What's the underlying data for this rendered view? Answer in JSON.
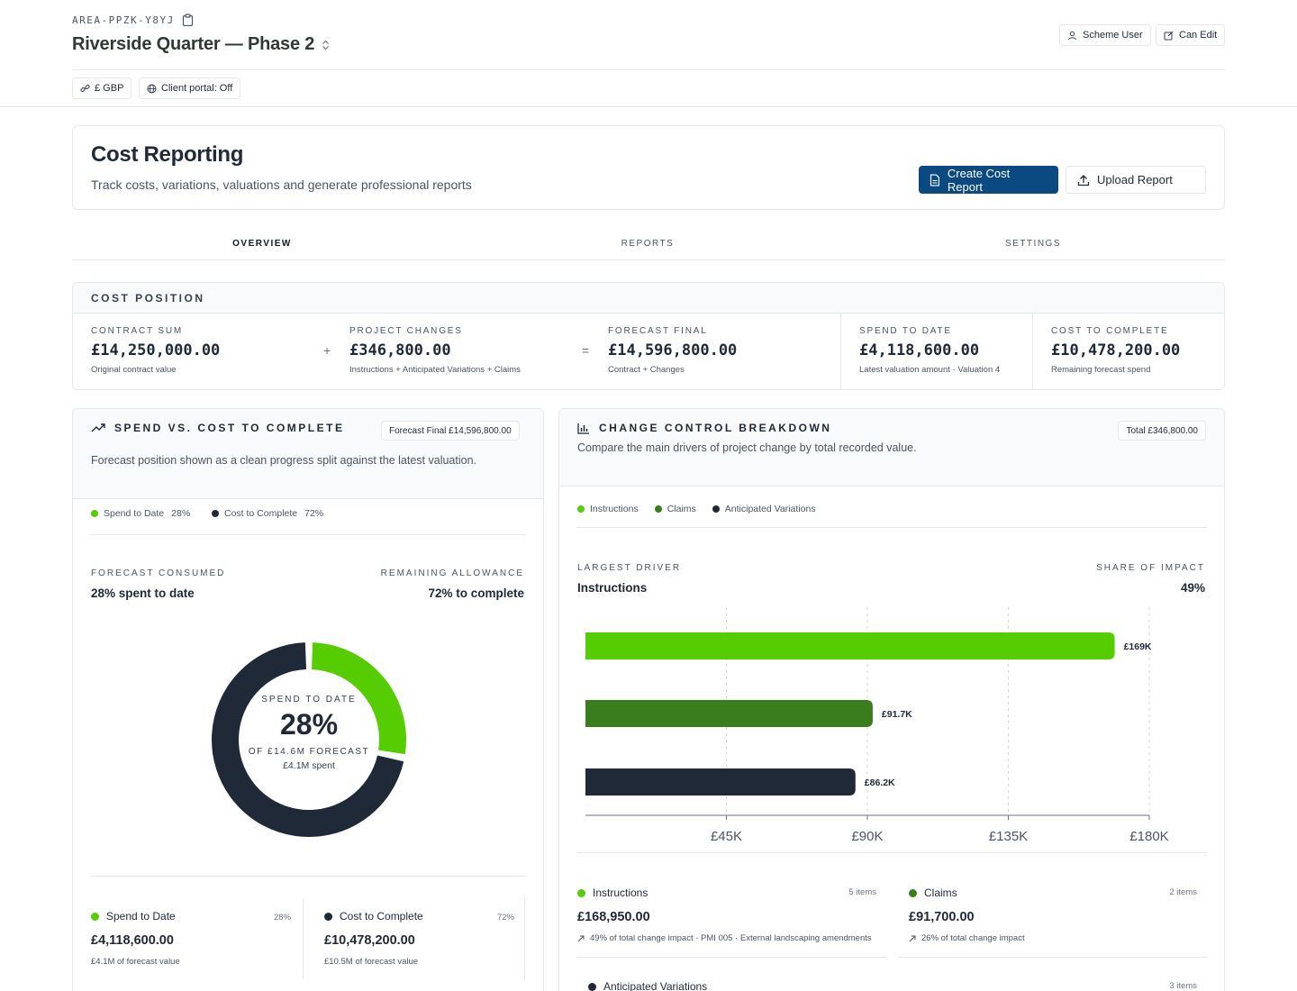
{
  "header": {
    "area_code": "AREA-PPZK-Y8YJ",
    "project_title": "Riverside Quarter — Phase 2",
    "user_role": "Scheme User",
    "permission": "Can Edit",
    "currency_chip": "£ GBP",
    "portal_chip": "Client portal: Off"
  },
  "page": {
    "title": "Cost Reporting",
    "subtitle": "Track costs, variations, valuations and generate professional reports",
    "create_button": "Create Cost Report",
    "upload_button": "Upload Report"
  },
  "tabs": [
    {
      "label": "OVERVIEW",
      "active": true
    },
    {
      "label": "REPORTS",
      "active": false
    },
    {
      "label": "SETTINGS",
      "active": false
    }
  ],
  "cost_position": {
    "title": "COST POSITION",
    "plus": "+",
    "equals": "=",
    "metrics": [
      {
        "label": "CONTRACT SUM",
        "value": "£14,250,000.00",
        "note": "Original contract value"
      },
      {
        "label": "PROJECT CHANGES",
        "value": "£346,800.00",
        "note": "Instructions + Anticipated Variations + Claims"
      },
      {
        "label": "FORECAST FINAL",
        "value": "£14,596,800.00",
        "note": "Contract + Changes"
      },
      {
        "label": "SPEND TO DATE",
        "value": "£4,118,600.00",
        "note": "Latest valuation amount · Valuation 4"
      },
      {
        "label": "COST TO COMPLETE",
        "value": "£10,478,200.00",
        "note": "Remaining forecast spend"
      }
    ]
  },
  "spend_panel": {
    "title": "SPEND VS. COST TO COMPLETE",
    "badge": "Forecast Final £14,596,800.00",
    "description": "Forecast position shown as a clean progress split against the latest valuation.",
    "legend": [
      {
        "name": "Spend to Date",
        "pct": "28%",
        "color": "#56cc02"
      },
      {
        "name": "Cost to Complete",
        "pct": "72%",
        "color": "#1f2937"
      }
    ],
    "consumed_label": "FORECAST CONSUMED",
    "consumed_value": "28% spent to date",
    "remaining_label": "REMAINING ALLOWANCE",
    "remaining_value": "72% to complete",
    "donut": {
      "spend_fraction": 0.28,
      "center_label": "SPEND TO DATE",
      "center_value": "28%",
      "center_sub": "OF £14.6M FORECAST",
      "center_note": "£4.1M spent"
    },
    "tiles": [
      {
        "name": "Spend to Date",
        "pct": "28%",
        "value": "£4,118,600.00",
        "note": "£4.1M of forecast value",
        "color": "#56cc02"
      },
      {
        "name": "Cost to Complete",
        "pct": "72%",
        "value": "£10,478,200.00",
        "note": "£10.5M of forecast value",
        "color": "#1f2937"
      }
    ]
  },
  "change_panel": {
    "title": "CHANGE CONTROL BREAKDOWN",
    "badge": "Total £346,800.00",
    "description": "Compare the main drivers of project change by total recorded value.",
    "legend": [
      {
        "name": "Instructions",
        "color": "#56cc02"
      },
      {
        "name": "Claims",
        "color": "#3a7d1e"
      },
      {
        "name": "Anticipated Variations",
        "color": "#1f2937"
      }
    ],
    "driver_label": "LARGEST DRIVER",
    "driver_value": "Instructions",
    "share_label": "SHARE OF IMPACT",
    "share_value": "49%",
    "tiles": [
      {
        "name": "Instructions",
        "count": "5 items",
        "value": "£168,950.00",
        "note": "49% of total change impact · PMI 005 · External landscaping amendments",
        "color": "#56cc02"
      },
      {
        "name": "Claims",
        "count": "2 items",
        "value": "£91,700.00",
        "note": "26% of total change impact",
        "color": "#3a7d1e"
      },
      {
        "name": "Anticipated Variations",
        "count": "3 items",
        "color": "#1f2937"
      }
    ]
  },
  "chart_data": {
    "type": "bar",
    "orientation": "horizontal",
    "categories": [
      "Instructions",
      "Claims",
      "Anticipated Variations"
    ],
    "values": [
      168950,
      91700,
      86200
    ],
    "data_labels": [
      "£169K",
      "£91.7K",
      "£86.2K"
    ],
    "colors": [
      "#56cc02",
      "#3a7d1e",
      "#1f2937"
    ],
    "xlim": [
      0,
      180000
    ],
    "xticks": [
      45000,
      90000,
      135000,
      180000
    ],
    "xtick_labels": [
      "£45K",
      "£90K",
      "£135K",
      "£180K"
    ],
    "grid": true,
    "title": "",
    "xlabel": "",
    "ylabel": ""
  }
}
